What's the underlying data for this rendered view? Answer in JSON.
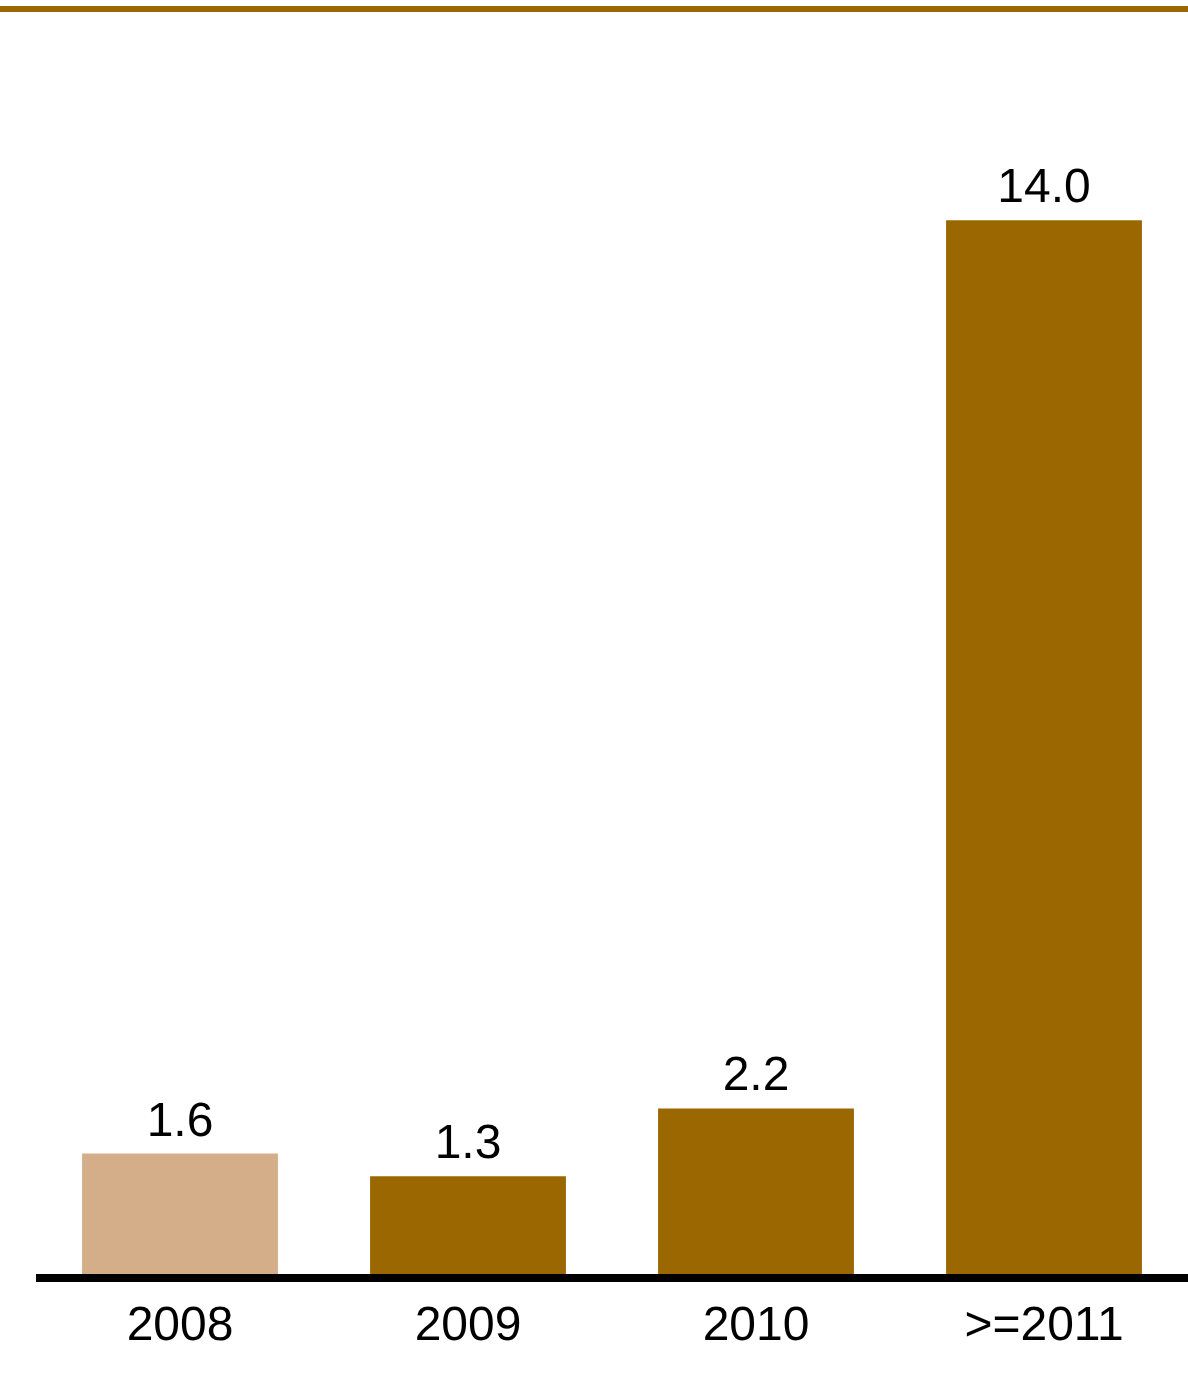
{
  "chart_data": {
    "type": "bar",
    "categories": [
      "2008",
      "2009",
      "2010",
      ">=2011"
    ],
    "values": [
      1.6,
      1.3,
      2.2,
      14.0
    ],
    "colors": [
      "#d4ae88",
      "#9a6700",
      "#9a6700",
      "#9a6700"
    ],
    "value_labels": [
      "1.6",
      "1.3",
      "2.2",
      "14.0"
    ],
    "grid": false
  }
}
